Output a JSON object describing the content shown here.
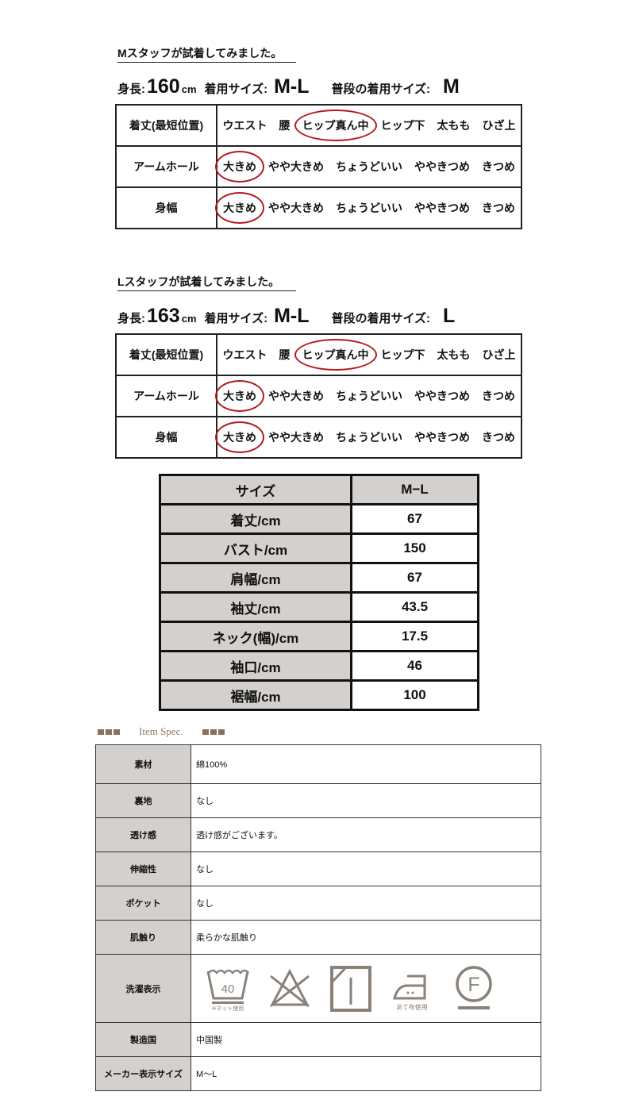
{
  "staff": [
    {
      "title": "Mスタッフが試着してみました。",
      "height_label": "身長:",
      "height": "160",
      "height_unit": "cm",
      "worn_label": "着用サイズ:",
      "worn": "M-L",
      "usual_label": "普段の着用サイズ:",
      "usual": "M",
      "rows": [
        {
          "label": "着丈(最短位置)",
          "options": [
            "ウエスト",
            "腰",
            "ヒップ真ん中",
            "ヒップ下",
            "太もも",
            "ひざ上"
          ],
          "selected": 2
        },
        {
          "label": "アームホール",
          "options": [
            "大きめ",
            "やや大きめ",
            "ちょうどいい",
            "ややきつめ",
            "きつめ"
          ],
          "selected": 0
        },
        {
          "label": "身幅",
          "options": [
            "大きめ",
            "やや大きめ",
            "ちょうどいい",
            "ややきつめ",
            "きつめ"
          ],
          "selected": 0
        }
      ]
    },
    {
      "title": "Lスタッフが試着してみました。",
      "height_label": "身長:",
      "height": "163",
      "height_unit": "cm",
      "worn_label": "着用サイズ:",
      "worn": "M-L",
      "usual_label": "普段の着用サイズ:",
      "usual": "L",
      "rows": [
        {
          "label": "着丈(最短位置)",
          "options": [
            "ウエスト",
            "腰",
            "ヒップ真ん中",
            "ヒップ下",
            "太もも",
            "ひざ上"
          ],
          "selected": 2
        },
        {
          "label": "アームホール",
          "options": [
            "大きめ",
            "やや大きめ",
            "ちょうどいい",
            "ややきつめ",
            "きつめ"
          ],
          "selected": 0
        },
        {
          "label": "身幅",
          "options": [
            "大きめ",
            "やや大きめ",
            "ちょうどいい",
            "ややきつめ",
            "きつめ"
          ],
          "selected": 0
        }
      ]
    }
  ],
  "size_table": {
    "header": [
      "サイズ",
      "M−L"
    ],
    "rows": [
      [
        "着丈/cm",
        "67"
      ],
      [
        "バスト/cm",
        "150"
      ],
      [
        "肩幅/cm",
        "67"
      ],
      [
        "袖丈/cm",
        "43.5"
      ],
      [
        "ネック(幅)/cm",
        "17.5"
      ],
      [
        "袖口/cm",
        "46"
      ],
      [
        "裾幅/cm",
        "100"
      ]
    ]
  },
  "spec": {
    "heading": "Item Spec.",
    "rows": [
      [
        "素材",
        "綿100%"
      ],
      [
        "裏地",
        "なし"
      ],
      [
        "透け感",
        "透け感がございます。"
      ],
      [
        "伸縮性",
        "なし"
      ],
      [
        "ポケット",
        "なし"
      ],
      [
        "肌触り",
        "柔らかな肌触り"
      ],
      [
        "洗濯表示",
        ""
      ],
      [
        "製造国",
        "中国製"
      ],
      [
        "メーカー表示サイズ",
        "M〜L"
      ]
    ],
    "care": {
      "wash_temp": "40",
      "wash_note": "※ネット使用",
      "iron_note": "あて布使用",
      "dry_letter": "F"
    }
  },
  "colors": {
    "circle": "#b3191e",
    "header_bg": "#d3d0cd",
    "care_icon": "#8a8178",
    "accent": "#8a7158"
  }
}
